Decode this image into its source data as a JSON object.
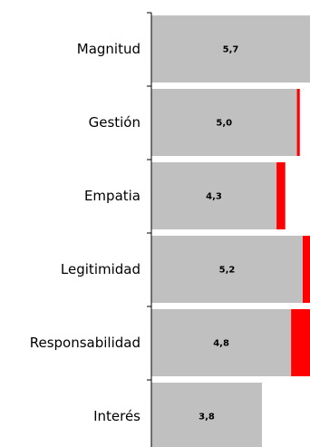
{
  "chart_data": {
    "type": "stacked-bar",
    "orientation": "horizontal",
    "categories": [
      "Magnitud",
      "Gestión",
      "Empatia",
      "Legitimidad",
      "Responsabilidad",
      "Interés"
    ],
    "series": [
      {
        "color": "#c0c0c0",
        "values": [
          5.7,
          5.0,
          4.3,
          5.2,
          4.8,
          3.8
        ],
        "value_labels": [
          "5,7",
          "5,0",
          "4,3",
          "5,2",
          "4,8",
          "3,8"
        ]
      },
      {
        "color": "#ff0000",
        "values": [
          0,
          0.1,
          0.3,
          0.3,
          0.7,
          0
        ]
      }
    ],
    "xlim": [
      0,
      5.45
    ]
  }
}
